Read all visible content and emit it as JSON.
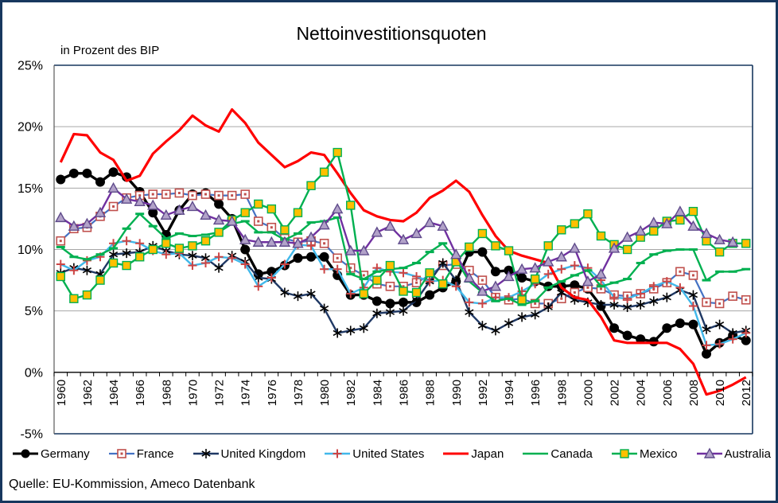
{
  "title": "Nettoinvestitionsquoten",
  "subtitle": "in Prozent des BIP",
  "source": "Quelle: EU-Kommission, Ameco Datenbank",
  "chart_data": {
    "type": "line",
    "title": "Nettoinvestitionsquoten",
    "subtitle": "in Prozent des BIP",
    "ylabel": "",
    "xlabel": "",
    "ylim": [
      -5,
      25
    ],
    "ytick_interval": 5,
    "ytick_suffix": "%",
    "grid": "horizontal",
    "legend_position": "bottom",
    "x_start": 1960,
    "x_end": 2012,
    "xtick_labels": [
      "1960",
      "1962",
      "1964",
      "1966",
      "1968",
      "1970",
      "1972",
      "1974",
      "1976",
      "1978",
      "1980",
      "1982",
      "1984",
      "1986",
      "1988",
      "1990",
      "1992",
      "1994",
      "1996",
      "1998",
      "2000",
      "2002",
      "2004",
      "2006",
      "2008",
      "2010",
      "2012"
    ],
    "axis_color": "#17375E",
    "gridline_color": "#A6A6A6",
    "zero_axis_color": "#000000",
    "series": [
      {
        "name": "Germany",
        "color": "#000000",
        "line_width": 3.4,
        "marker": "circle",
        "marker_color": "#000000",
        "values": [
          15.7,
          16.2,
          16.2,
          15.5,
          16.3,
          15.9,
          14.7,
          13.0,
          11.2,
          13.2,
          14.5,
          14.6,
          13.7,
          12.5,
          10.0,
          8.0,
          8.2,
          8.7,
          9.3,
          9.4,
          9.4,
          7.9,
          6.3,
          6.3,
          5.8,
          5.6,
          5.7,
          5.7,
          6.3,
          6.9,
          7.4,
          9.8,
          9.8,
          8.2,
          8.3,
          7.7,
          7.4,
          7.0,
          7.0,
          7.1,
          6.8,
          5.4,
          3.6,
          3.0,
          2.7,
          2.5,
          3.6,
          4.0,
          3.9,
          1.5,
          2.4,
          3.0,
          2.6
        ]
      },
      {
        "name": "France",
        "color": "#4472C4",
        "line_width": 2.2,
        "marker": "square-open-dot",
        "marker_color": "#C0504D",
        "values": [
          10.7,
          11.7,
          11.8,
          12.7,
          13.5,
          14.2,
          14.4,
          14.5,
          14.5,
          14.6,
          14.4,
          14.5,
          14.4,
          14.4,
          14.5,
          12.3,
          11.8,
          10.9,
          10.6,
          10.7,
          10.5,
          9.3,
          8.5,
          7.9,
          7.2,
          7.0,
          7.0,
          7.3,
          7.9,
          8.7,
          8.8,
          8.3,
          7.5,
          6.1,
          5.9,
          6.0,
          5.6,
          5.6,
          6.0,
          6.5,
          6.9,
          6.8,
          6.3,
          6.2,
          6.4,
          6.8,
          7.3,
          8.2,
          7.9,
          5.7,
          5.6,
          6.2,
          5.9
        ]
      },
      {
        "name": "United Kingdom",
        "color": "#1F3864",
        "line_width": 2.4,
        "marker": "asterisk",
        "marker_color": "#000000",
        "values": [
          8.1,
          8.5,
          8.3,
          8.0,
          9.6,
          9.7,
          9.8,
          10.3,
          9.9,
          9.6,
          9.5,
          9.3,
          8.5,
          9.5,
          9.0,
          7.7,
          7.6,
          6.5,
          6.2,
          6.4,
          5.2,
          3.2,
          3.4,
          3.6,
          4.8,
          4.9,
          5.0,
          5.9,
          7.4,
          8.9,
          7.5,
          4.9,
          3.8,
          3.4,
          4.0,
          4.5,
          4.7,
          5.3,
          6.5,
          5.9,
          5.7,
          5.5,
          5.5,
          5.3,
          5.5,
          5.8,
          6.1,
          6.7,
          6.3,
          3.5,
          3.9,
          3.2,
          3.4
        ]
      },
      {
        "name": "United States",
        "color": "#41B8EA",
        "line_width": 2.4,
        "marker": "plus",
        "marker_color": "#CC4444",
        "values": [
          8.8,
          8.3,
          9.1,
          9.4,
          10.5,
          10.7,
          10.5,
          9.9,
          9.6,
          9.7,
          8.7,
          8.9,
          9.4,
          9.3,
          8.8,
          7.0,
          7.7,
          8.8,
          10.4,
          10.3,
          8.4,
          8.4,
          6.4,
          6.9,
          8.5,
          8.2,
          8.1,
          7.8,
          7.4,
          7.5,
          7.0,
          5.7,
          5.6,
          6.1,
          6.1,
          6.6,
          7.2,
          8.0,
          8.4,
          8.7,
          8.5,
          7.5,
          6.1,
          6.0,
          6.4,
          7.0,
          7.4,
          6.9,
          5.4,
          2.2,
          2.3,
          2.7,
          3.2
        ]
      },
      {
        "name": "Japan",
        "color": "#FF0000",
        "line_width": 3.2,
        "marker": "none",
        "marker_color": "#FF0000",
        "values": [
          17.1,
          19.4,
          19.3,
          17.9,
          17.3,
          15.6,
          16.0,
          17.8,
          18.8,
          19.7,
          20.9,
          20.1,
          19.6,
          21.4,
          20.3,
          18.7,
          17.7,
          16.7,
          17.2,
          17.9,
          17.7,
          16.2,
          14.6,
          13.2,
          12.7,
          12.4,
          12.3,
          13.0,
          14.2,
          14.8,
          15.6,
          14.7,
          12.8,
          11.1,
          9.9,
          9.5,
          9.2,
          8.9,
          6.9,
          6.1,
          5.9,
          4.5,
          2.6,
          2.4,
          2.4,
          2.4,
          2.4,
          1.9,
          0.7,
          -1.8,
          -1.5,
          -1.0,
          -0.4
        ]
      },
      {
        "name": "Canada",
        "color": "#00B050",
        "line_width": 2.4,
        "marker": "dash",
        "marker_color": "#00B050",
        "values": [
          10.2,
          9.4,
          9.2,
          9.6,
          10.1,
          11.7,
          12.9,
          11.9,
          10.9,
          11.3,
          11.1,
          11.2,
          11.4,
          12.1,
          12.3,
          11.4,
          11.4,
          10.8,
          11.3,
          12.2,
          12.3,
          12.6,
          8.0,
          7.6,
          8.2,
          8.4,
          8.5,
          8.9,
          9.8,
          10.5,
          9.2,
          7.4,
          6.5,
          5.8,
          6.0,
          5.5,
          5.8,
          6.9,
          7.4,
          7.9,
          8.3,
          7.0,
          7.3,
          7.6,
          8.9,
          9.6,
          9.9,
          10.0,
          10.0,
          7.5,
          8.2,
          8.2,
          8.4
        ]
      },
      {
        "name": "Mexico",
        "color": "#00B050",
        "line_width": 2.4,
        "marker": "square",
        "marker_color": "#FFC000",
        "values": [
          7.8,
          6.0,
          6.3,
          7.5,
          8.9,
          8.7,
          9.4,
          10.0,
          10.5,
          10.1,
          10.3,
          10.7,
          11.4,
          12.4,
          13.0,
          13.7,
          13.3,
          11.6,
          13.0,
          15.2,
          16.3,
          17.9,
          13.6,
          6.4,
          7.5,
          8.7,
          6.6,
          6.5,
          8.1,
          7.2,
          9.0,
          10.2,
          11.3,
          10.3,
          9.9,
          5.9,
          7.6,
          10.3,
          11.6,
          12.1,
          12.9,
          11.1,
          10.4,
          10.0,
          11.0,
          11.5,
          12.3,
          12.4,
          13.1,
          10.7,
          9.8,
          10.5,
          10.5
        ]
      },
      {
        "name": "Australia",
        "color": "#7030A0",
        "line_width": 2.4,
        "marker": "triangle",
        "marker_color": "#B2A2C9",
        "values": [
          12.6,
          11.9,
          12.1,
          13.0,
          15.0,
          14.1,
          13.9,
          13.6,
          12.8,
          13.2,
          13.5,
          12.8,
          12.4,
          12.3,
          10.8,
          10.6,
          10.6,
          10.6,
          10.5,
          11.0,
          12.0,
          13.3,
          9.9,
          9.9,
          11.4,
          11.9,
          10.8,
          11.3,
          12.2,
          11.9,
          9.6,
          7.7,
          6.6,
          7.0,
          7.8,
          8.4,
          8.5,
          9.0,
          9.4,
          10.1,
          7.4,
          8.0,
          10.1,
          11.0,
          11.5,
          12.2,
          12.1,
          13.1,
          11.9,
          11.3,
          10.8,
          10.6,
          null
        ]
      }
    ]
  }
}
